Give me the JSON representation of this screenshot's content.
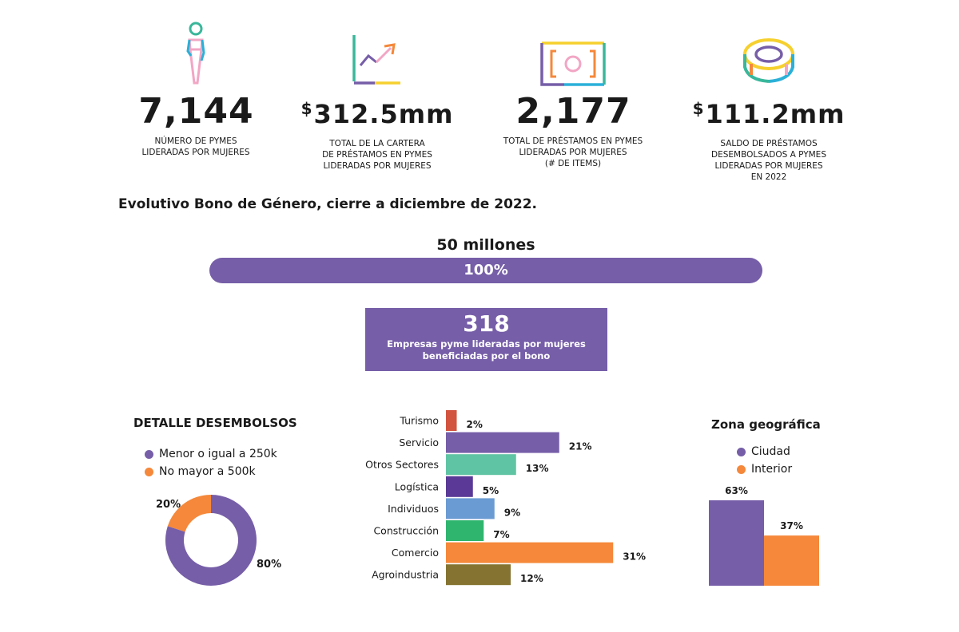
{
  "kpis": [
    {
      "icon": "woman-icon",
      "value": "7,144",
      "currency": "",
      "label": "Número de PYMES\nlideradas por mujeres"
    },
    {
      "icon": "growth-chart-icon",
      "value": "312.5mm",
      "currency": "$",
      "label": "Total de la cartera\nde préstamos en PYMES\nlideradas por mujeres"
    },
    {
      "icon": "banknote-icon",
      "value": "2,177",
      "currency": "",
      "label": "Total de préstamos en PYMES\nlideradas por mujeres\n(# de items)"
    },
    {
      "icon": "coin-icon",
      "value": "111.2mm",
      "currency": "$",
      "label": "Saldo de préstamos\ndesembolsados a PYMES\nlideradas por mujeres\nen 2022"
    }
  ],
  "section_title": "Evolutivo Bono de Género, cierre a diciembre de 2022.",
  "goal": {
    "title": "50 millones",
    "progress_label": "100%",
    "progress": 1.0
  },
  "beneficiaries": {
    "value": "318",
    "label": "Empresas pyme lideradas por mujeres\nbeneficiadas por el bono"
  },
  "colors": {
    "purple": "#765ea8",
    "orange": "#f5883a"
  },
  "chart_data": [
    {
      "type": "pie",
      "title": "DETALLE DESEMBOLSOS",
      "categories": [
        "Menor o igual a 250k",
        "No mayor a 500k"
      ],
      "values": [
        80,
        20
      ],
      "value_labels": [
        "80%",
        "20%"
      ],
      "colors": [
        "#765ea8",
        "#f5883a"
      ],
      "donut": true,
      "legend": "top"
    },
    {
      "type": "bar",
      "orientation": "horizontal",
      "categories": [
        "Turismo",
        "Servicio",
        "Otros Sectores",
        "Logística",
        "Individuos",
        "Construcción",
        "Comercio",
        "Agroindustria"
      ],
      "values": [
        2,
        21,
        13,
        5,
        9,
        7,
        31,
        12
      ],
      "value_labels": [
        "2%",
        "21%",
        "13%",
        "5%",
        "9%",
        "7%",
        "31%",
        "12%"
      ],
      "colors": [
        "#d2533e",
        "#765ea8",
        "#5fc4a3",
        "#5a3a96",
        "#6a9bd2",
        "#2fb56e",
        "#f5883a",
        "#857431"
      ]
    },
    {
      "type": "bar",
      "title": "Zona geográfica",
      "categories": [
        "Ciudad",
        "Interior"
      ],
      "values": [
        63,
        37
      ],
      "value_labels": [
        "63%",
        "37%"
      ],
      "colors": [
        "#765ea8",
        "#f5883a"
      ],
      "legend": "top"
    }
  ]
}
